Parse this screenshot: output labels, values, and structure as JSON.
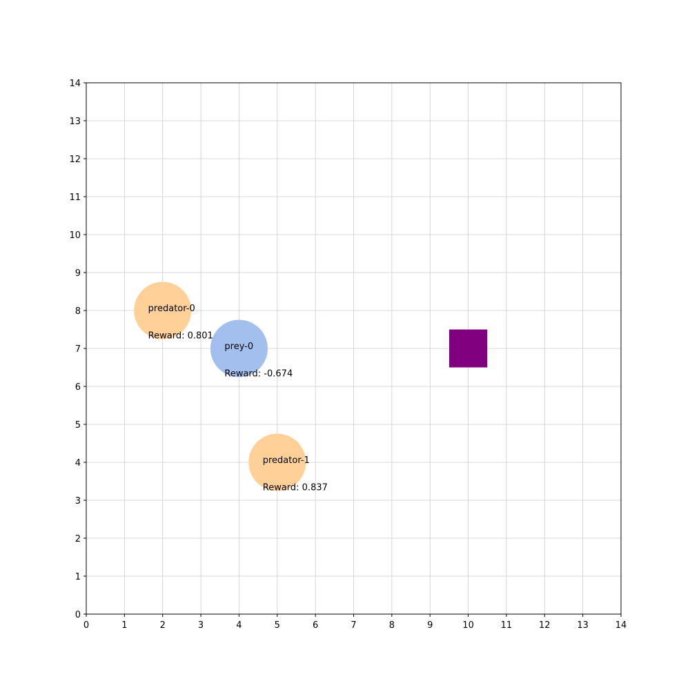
{
  "world": {
    "xlim": [
      0,
      14
    ],
    "ylim": [
      0,
      14
    ],
    "x_ticks": [
      "0",
      "1",
      "2",
      "3",
      "4",
      "5",
      "6",
      "7",
      "8",
      "9",
      "10",
      "11",
      "12",
      "13",
      "14"
    ],
    "y_ticks": [
      "0",
      "1",
      "2",
      "3",
      "4",
      "5",
      "6",
      "7",
      "8",
      "9",
      "10",
      "11",
      "12",
      "13",
      "14"
    ],
    "grid": true,
    "grid_color": "#cccccc",
    "axis_color": "#000000"
  },
  "agents": [
    {
      "name": "predator-0",
      "role": "predator",
      "x": 2,
      "y": 8,
      "reward_text": "Reward: 0.801",
      "color": "#ffd199"
    },
    {
      "name": "prey-0",
      "role": "prey",
      "x": 4,
      "y": 7,
      "reward_text": "Reward: -0.674",
      "color": "#a3bfee"
    },
    {
      "name": "predator-1",
      "role": "predator",
      "x": 5,
      "y": 4,
      "reward_text": "Reward: 0.837",
      "color": "#ffd199"
    }
  ],
  "obstacles": [
    {
      "x": 10,
      "y": 7,
      "color": "#800080"
    }
  ]
}
